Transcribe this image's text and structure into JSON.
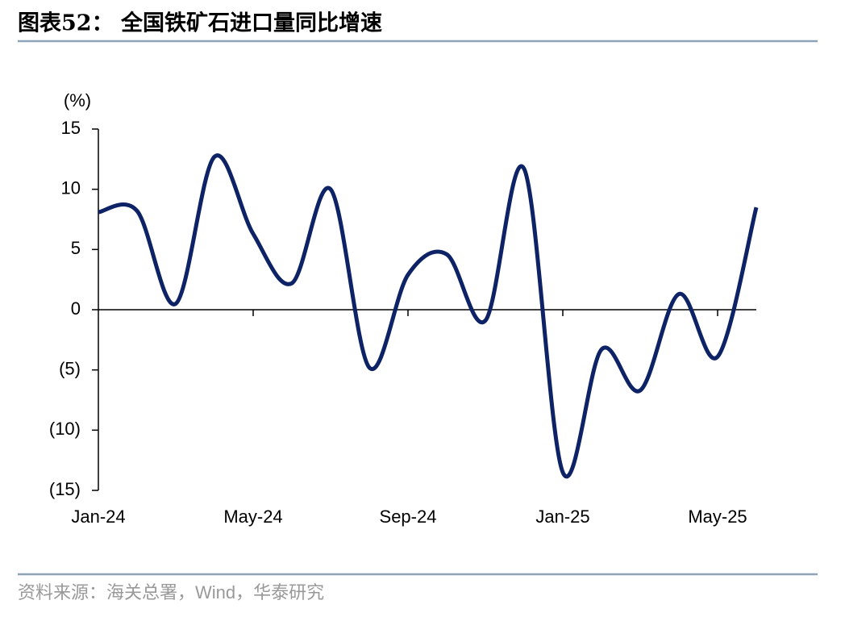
{
  "header": {
    "title": "图表52： 全国铁矿石进口量同比增速"
  },
  "chart_data": {
    "type": "line",
    "y_label": "(%)",
    "categories": [
      "Jan-24",
      null,
      null,
      null,
      "May-24",
      null,
      null,
      null,
      "Sep-24",
      null,
      null,
      null,
      "Jan-25",
      null,
      null,
      null,
      "May-25",
      null
    ],
    "series": [
      {
        "name": "全国铁矿石进口量同比增速",
        "color": "#0d2366",
        "values": [
          8.1,
          8.2,
          0.5,
          12.7,
          6.3,
          2.2,
          10.0,
          -4.8,
          2.9,
          4.6,
          -0.9,
          11.7,
          -13.5,
          -3.3,
          -6.7,
          1.3,
          -3.9,
          8.5
        ]
      }
    ],
    "ylim": [
      -15,
      15
    ],
    "yticks": [
      {
        "value": -15,
        "label": "(15)"
      },
      {
        "value": -10,
        "label": "(10)"
      },
      {
        "value": -5,
        "label": "(5)"
      },
      0,
      5,
      10,
      15
    ]
  },
  "footer": {
    "source": "资料来源：海关总署，Wind，华泰研究"
  }
}
